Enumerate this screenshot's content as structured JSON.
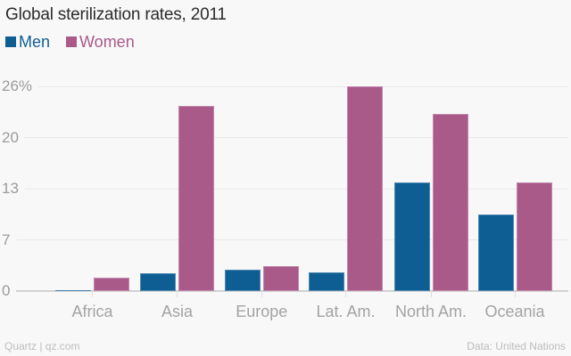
{
  "title": "Global sterilization rates, 2011",
  "legend": {
    "items": [
      {
        "label": "Men",
        "color": "#0e5e94"
      },
      {
        "label": "Women",
        "color": "#a95a89"
      }
    ]
  },
  "footer": {
    "left": "Quartz | qz.com",
    "right": "Data: United Nations"
  },
  "colors": {
    "background": "#f8f8f8",
    "men": "#0e5e94",
    "women": "#a95a89",
    "gridline": "#e9e9e9",
    "axis_line": "#d2d2d2",
    "axis_text": "#9b9b9b",
    "category_text": "#a3a3a3",
    "title_text": "#2b2b2b",
    "footer_text": "#bcbcbc"
  },
  "chart_data": {
    "type": "bar",
    "title": "Global sterilization rates, 2011",
    "categories": [
      "Africa",
      "Asia",
      "Europe",
      "Lat. Am.",
      "North Am.",
      "Oceania"
    ],
    "series": [
      {
        "name": "Men",
        "color": "#0e5e94",
        "values": [
          0.1,
          2.3,
          2.7,
          2.4,
          13.8,
          9.7
        ]
      },
      {
        "name": "Women",
        "color": "#a95a89",
        "values": [
          1.7,
          23.5,
          3.2,
          26.0,
          22.5,
          13.8
        ]
      }
    ],
    "ylabel": "",
    "xlabel": "",
    "ylim": [
      0,
      26
    ],
    "y_ticks": [
      {
        "value": 0,
        "label": "0"
      },
      {
        "value": 6.5,
        "label": "7"
      },
      {
        "value": 13,
        "label": "13"
      },
      {
        "value": 19.5,
        "label": "20"
      },
      {
        "value": 26,
        "label": "26%"
      }
    ],
    "grid": "horizontal",
    "legend_position": "top-left"
  }
}
